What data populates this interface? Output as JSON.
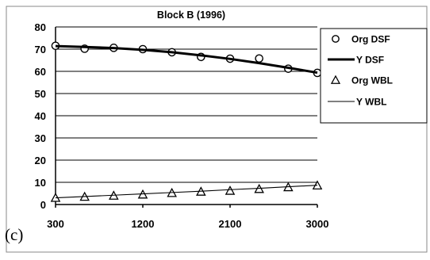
{
  "panel_label": "(c)",
  "colors": {
    "ink": "#000000",
    "frame": "#8a8a8a",
    "background": "#ffffff"
  },
  "chart_data": {
    "type": "line",
    "title": "Block B (1996)",
    "xlabel": "",
    "ylabel": "",
    "x": [
      300,
      600,
      900,
      1200,
      1500,
      1800,
      2100,
      2400,
      2700,
      3000
    ],
    "xlim": [
      300,
      3000
    ],
    "ylim": [
      0,
      80
    ],
    "x_ticks": [
      300,
      1200,
      2100,
      3000
    ],
    "y_ticks": [
      0,
      10,
      20,
      30,
      40,
      50,
      60,
      70,
      80
    ],
    "grid": "horizontal",
    "legend_position": "right",
    "series": [
      {
        "name": "Org DSF",
        "style": "circle-markers",
        "values": [
          71.5,
          70.2,
          70.6,
          70.0,
          68.6,
          66.5,
          65.7,
          65.8,
          61.2,
          59.3
        ]
      },
      {
        "name": "Y DSF",
        "style": "thick-line",
        "values": [
          71.4,
          71.0,
          70.5,
          69.7,
          68.6,
          67.2,
          65.6,
          63.7,
          61.6,
          59.4
        ]
      },
      {
        "name": "Org WBL",
        "style": "triangle-markers",
        "values": [
          3.0,
          3.5,
          4.0,
          4.5,
          5.2,
          5.8,
          6.2,
          7.0,
          7.8,
          8.6
        ]
      },
      {
        "name": "Y WBL",
        "style": "thin-line",
        "values": [
          3.0,
          3.6,
          4.2,
          4.8,
          5.4,
          6.0,
          6.7,
          7.3,
          8.0,
          8.7
        ]
      }
    ]
  }
}
